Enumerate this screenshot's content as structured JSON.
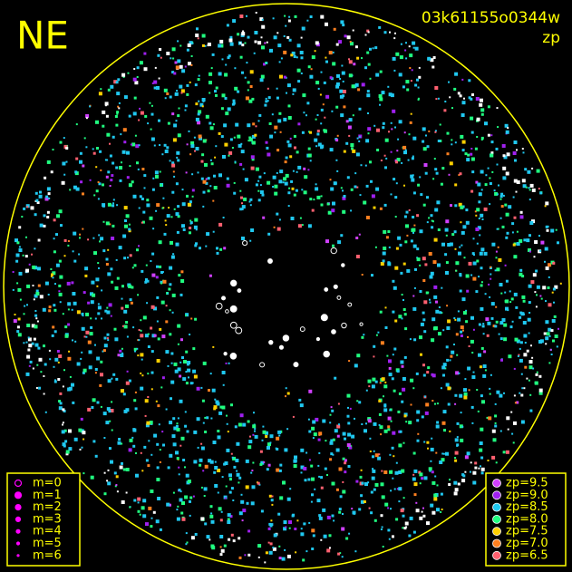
{
  "header": {
    "direction": "NE",
    "frame_id": "03k61155o0344w",
    "quantity": "zp"
  },
  "magnitude_legend": [
    "m=0",
    "m=1",
    "m=2",
    "m=3",
    "m=4",
    "m=5",
    "m=6"
  ],
  "zp_legend": [
    {
      "label": "zp=9.5",
      "color": "#d040ff"
    },
    {
      "label": "zp=9.0",
      "color": "#a020f0"
    },
    {
      "label": "zp=8.5",
      "color": "#20c8f0"
    },
    {
      "label": "zp=8.0",
      "color": "#20ff80"
    },
    {
      "label": "zp=7.5",
      "color": "#ffd000"
    },
    {
      "label": "zp=7.0",
      "color": "#ff8020"
    },
    {
      "label": "zp=6.5",
      "color": "#ff6070"
    }
  ]
}
